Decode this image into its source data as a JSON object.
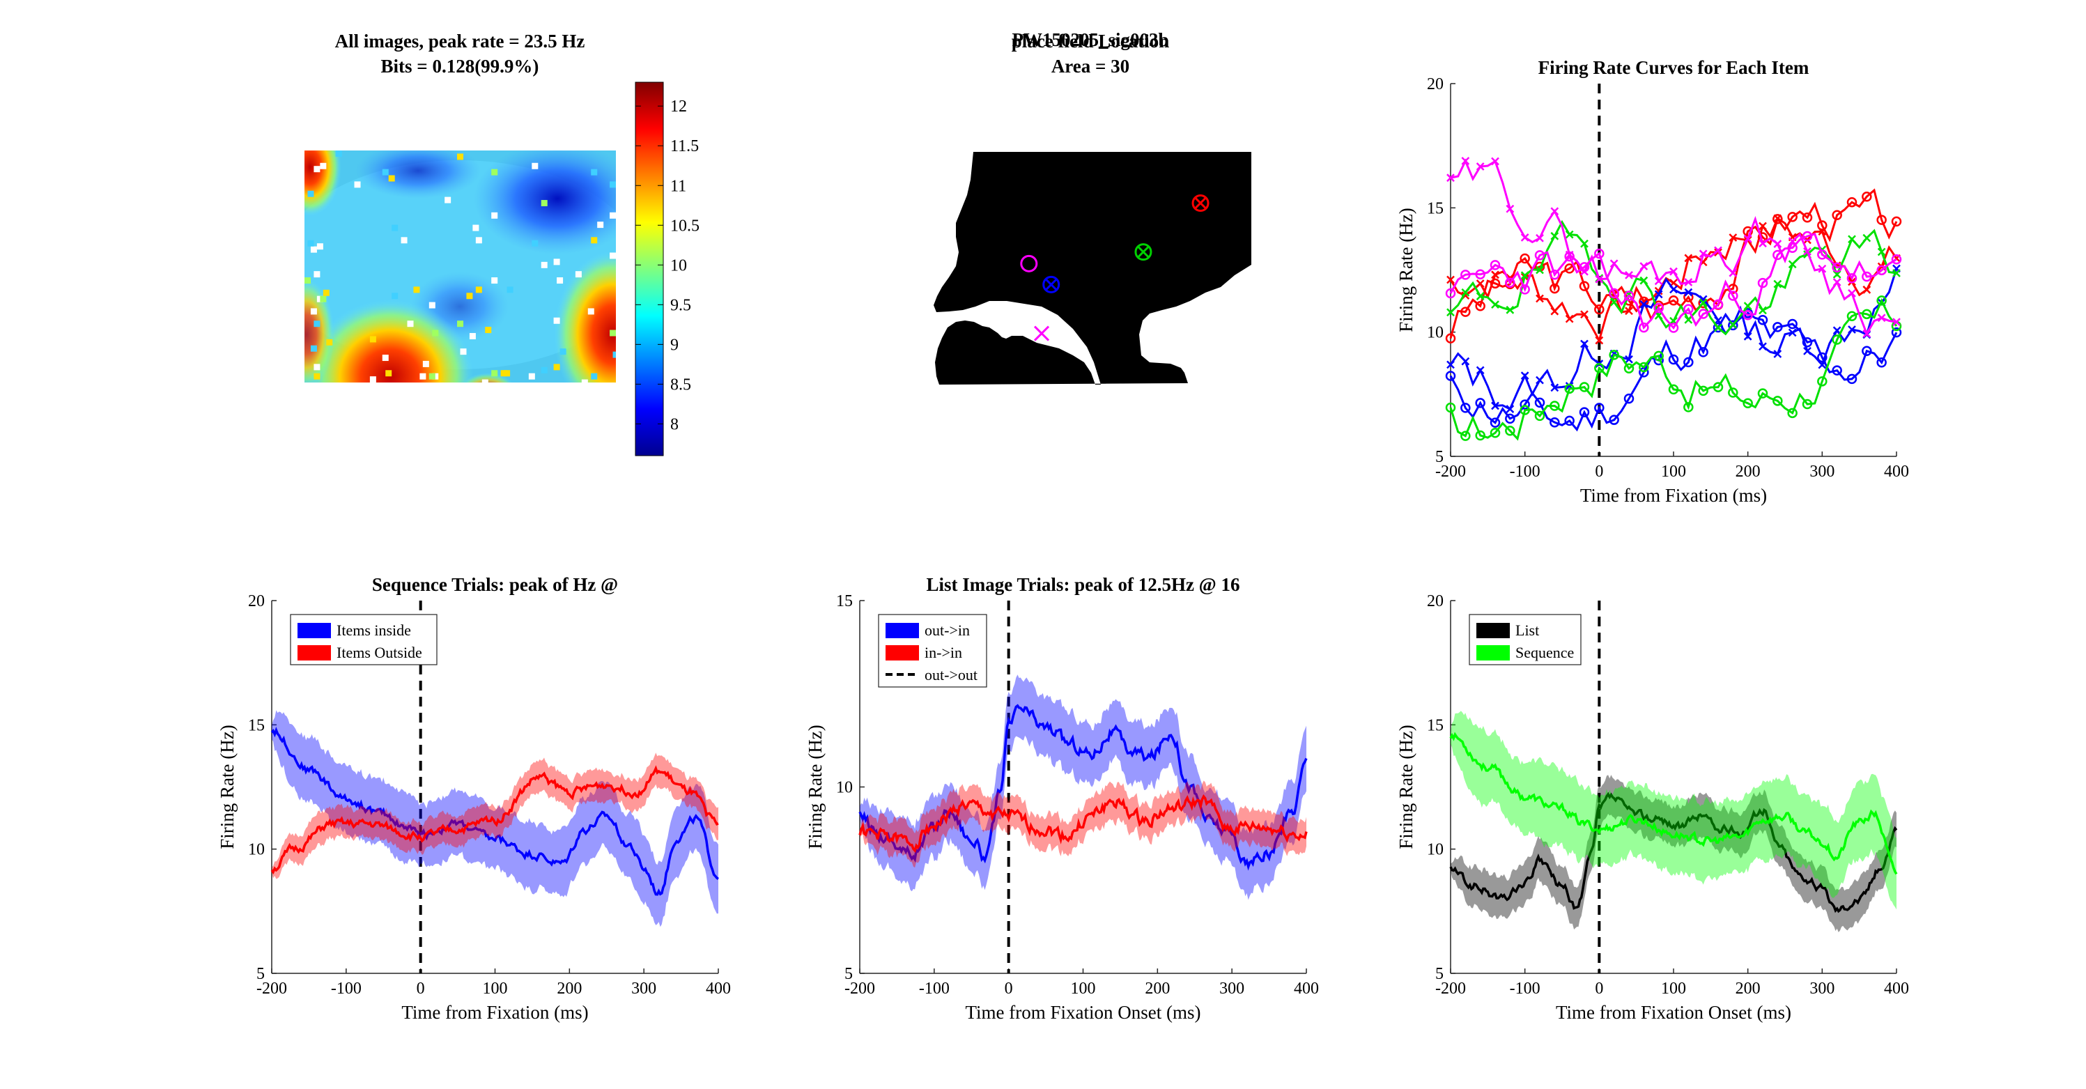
{
  "chart_data": [
    {
      "id": "heatmap",
      "type": "heatmap",
      "title": [
        "All images, peak rate = 23.5 Hz",
        "Bits = 0.128(99.9%)"
      ],
      "colorbar": {
        "min": 7.6,
        "max": 12.3,
        "ticks": [
          8,
          8.5,
          9,
          9.5,
          10,
          10.5,
          11,
          11.5,
          12
        ]
      },
      "colormap": "jet"
    },
    {
      "id": "placefield",
      "type": "scatter",
      "title": [
        "place field Location",
        "Area = 30"
      ],
      "overlapping_title": "PW150205_sig003b",
      "markers": [
        {
          "color": "#ff00ff",
          "shape": "circle",
          "x": 0.3,
          "y": 0.48
        },
        {
          "color": "#0000ff",
          "shape": "circle-x",
          "x": 0.37,
          "y": 0.57
        },
        {
          "color": "#00d000",
          "shape": "circle-x",
          "x": 0.66,
          "y": 0.43
        },
        {
          "color": "#ff0000",
          "shape": "circle-x",
          "x": 0.84,
          "y": 0.22
        },
        {
          "color": "#ff00ff",
          "shape": "x",
          "x": 0.34,
          "y": 0.78
        }
      ]
    },
    {
      "id": "items",
      "type": "line",
      "title": "Firing Rate Curves for Each Item",
      "xlabel": "Time from Fixation (ms)",
      "ylabel": "Firing Rate (Hz)",
      "xlim": [
        -200,
        400
      ],
      "ylim": [
        5,
        20
      ],
      "xticks": [
        -200,
        -100,
        0,
        100,
        200,
        300,
        400
      ],
      "yticks": [
        5,
        10,
        15,
        20
      ],
      "vline": 0,
      "series": [
        {
          "color": "#ff0000",
          "marker": "o",
          "start": 10.2,
          "end": 14.5,
          "seed": 3
        },
        {
          "color": "#ff0000",
          "marker": "x",
          "start": 11.0,
          "end": 14.0,
          "seed": 7
        },
        {
          "color": "#0000ff",
          "marker": "o",
          "start": 6.5,
          "end": 10.3,
          "seed": 11
        },
        {
          "color": "#0000ff",
          "marker": "x",
          "start": 8.4,
          "end": 11.5,
          "seed": 13
        },
        {
          "color": "#00e000",
          "marker": "o",
          "start": 7.2,
          "end": 9.0,
          "seed": 17
        },
        {
          "color": "#00e000",
          "marker": "x",
          "start": 11.8,
          "end": 11.8,
          "seed": 19
        },
        {
          "color": "#ff00ff",
          "marker": "o",
          "start": 11.2,
          "end": 12.0,
          "seed": 23
        },
        {
          "color": "#ff00ff",
          "marker": "x",
          "start": 14.7,
          "end": 11.8,
          "seed": 29
        }
      ]
    },
    {
      "id": "sequence",
      "type": "line",
      "title": "Sequence Trials: peak of Hz @",
      "xlabel": "Time from Fixation (ms)",
      "ylabel": "Firing Rate (Hz)",
      "xlim": [
        -200,
        400
      ],
      "ylim": [
        5,
        20
      ],
      "xticks": [
        -200,
        -100,
        0,
        100,
        200,
        300,
        400
      ],
      "yticks": [
        5,
        10,
        15,
        20
      ],
      "vline": 0,
      "legend": [
        {
          "label": "Items inside",
          "color": "#0000ff",
          "style": "patch"
        },
        {
          "label": "Items Outside",
          "color": "#ff0000",
          "style": "patch"
        }
      ],
      "series": [
        {
          "name": "Items inside",
          "color": "#0000ff",
          "band": 1.3,
          "knots": [
            [
              -200,
              14.8
            ],
            [
              -150,
              13.2
            ],
            [
              -100,
              12.0
            ],
            [
              -50,
              11.4
            ],
            [
              -20,
              10.9
            ],
            [
              0,
              10.6
            ],
            [
              50,
              11.0
            ],
            [
              100,
              10.4
            ],
            [
              150,
              9.8
            ],
            [
              190,
              9.4
            ],
            [
              220,
              10.8
            ],
            [
              250,
              11.3
            ],
            [
              280,
              10.2
            ],
            [
              300,
              9.2
            ],
            [
              320,
              8.2
            ],
            [
              345,
              10.5
            ],
            [
              370,
              11.2
            ],
            [
              400,
              8.9
            ]
          ]
        },
        {
          "name": "Items Outside",
          "color": "#ff0000",
          "band": 0.6,
          "knots": [
            [
              -200,
              9.2
            ],
            [
              -170,
              10.0
            ],
            [
              -120,
              11.0
            ],
            [
              -70,
              11.0
            ],
            [
              0,
              10.5
            ],
            [
              50,
              10.8
            ],
            [
              100,
              11.2
            ],
            [
              160,
              12.9
            ],
            [
              200,
              12.3
            ],
            [
              250,
              12.6
            ],
            [
              290,
              12.3
            ],
            [
              320,
              13.1
            ],
            [
              360,
              12.3
            ],
            [
              400,
              11.0
            ]
          ]
        }
      ]
    },
    {
      "id": "list",
      "type": "line",
      "title": "List Image Trials: peak of 12.5Hz @ 16",
      "xlabel": "Time from Fixation Onset (ms)",
      "ylabel": "Firing Rate (Hz)",
      "xlim": [
        -200,
        400
      ],
      "ylim": [
        5,
        15
      ],
      "xticks": [
        -200,
        -100,
        0,
        100,
        200,
        300,
        400
      ],
      "yticks": [
        5,
        10,
        15
      ],
      "vline": 0,
      "legend": [
        {
          "label": "out->in",
          "color": "#0000ff",
          "style": "patch"
        },
        {
          "label": "in->in",
          "color": "#ff0000",
          "style": "patch"
        },
        {
          "label": "out->out",
          "color": "#000000",
          "style": "dash"
        }
      ],
      "series": [
        {
          "name": "out->in",
          "color": "#0000ff",
          "band": 0.8,
          "knots": [
            [
              -200,
              9.2
            ],
            [
              -170,
              8.7
            ],
            [
              -130,
              8.2
            ],
            [
              -100,
              8.9
            ],
            [
              -80,
              9.4
            ],
            [
              -50,
              8.6
            ],
            [
              -30,
              8.1
            ],
            [
              -10,
              10.0
            ],
            [
              0,
              11.6
            ],
            [
              15,
              12.1
            ],
            [
              50,
              11.6
            ],
            [
              80,
              11.2
            ],
            [
              110,
              10.9
            ],
            [
              140,
              11.5
            ],
            [
              160,
              11.0
            ],
            [
              190,
              10.8
            ],
            [
              220,
              11.5
            ],
            [
              240,
              10.1
            ],
            [
              270,
              9.1
            ],
            [
              300,
              8.7
            ],
            [
              320,
              7.9
            ],
            [
              350,
              8.2
            ],
            [
              380,
              9.3
            ],
            [
              400,
              10.7
            ]
          ]
        },
        {
          "name": "in->in",
          "color": "#ff0000",
          "band": 0.45,
          "knots": [
            [
              -200,
              8.8
            ],
            [
              -170,
              8.7
            ],
            [
              -130,
              8.5
            ],
            [
              -100,
              9.0
            ],
            [
              -60,
              9.5
            ],
            [
              -20,
              9.3
            ],
            [
              0,
              9.2
            ],
            [
              40,
              8.9
            ],
            [
              80,
              8.7
            ],
            [
              110,
              9.2
            ],
            [
              140,
              9.6
            ],
            [
              180,
              9.1
            ],
            [
              220,
              9.4
            ],
            [
              260,
              9.6
            ],
            [
              300,
              8.9
            ],
            [
              340,
              8.9
            ],
            [
              400,
              8.7
            ]
          ]
        }
      ]
    },
    {
      "id": "listseq",
      "type": "line",
      "xlabel": "Time from Fixation Onset (ms)",
      "ylabel": "Firing Rate (Hz)",
      "xlim": [
        -200,
        400
      ],
      "ylim": [
        5,
        20
      ],
      "xticks": [
        -200,
        -100,
        0,
        100,
        200,
        300,
        400
      ],
      "yticks": [
        5,
        10,
        15,
        20
      ],
      "vline": 0,
      "legend": [
        {
          "label": "List",
          "color": "#000000",
          "style": "patch"
        },
        {
          "label": "Sequence",
          "color": "#00ff00",
          "style": "patch"
        }
      ],
      "series": [
        {
          "name": "List",
          "color": "#000000",
          "band": 0.8,
          "knots": [
            [
              -200,
              9.2
            ],
            [
              -170,
              8.5
            ],
            [
              -130,
              8.0
            ],
            [
              -100,
              8.6
            ],
            [
              -80,
              9.5
            ],
            [
              -50,
              8.5
            ],
            [
              -30,
              7.6
            ],
            [
              -10,
              9.8
            ],
            [
              0,
              11.6
            ],
            [
              15,
              12.1
            ],
            [
              50,
              11.4
            ],
            [
              80,
              11.2
            ],
            [
              110,
              10.9
            ],
            [
              140,
              11.4
            ],
            [
              160,
              10.8
            ],
            [
              190,
              10.7
            ],
            [
              220,
              11.6
            ],
            [
              240,
              10.2
            ],
            [
              270,
              9.0
            ],
            [
              300,
              8.4
            ],
            [
              320,
              7.6
            ],
            [
              350,
              8.0
            ],
            [
              380,
              9.3
            ],
            [
              400,
              10.9
            ]
          ]
        },
        {
          "name": "Sequence",
          "color": "#00ff00",
          "band": 1.5,
          "knots": [
            [
              -200,
              14.6
            ],
            [
              -150,
              13.3
            ],
            [
              -100,
              12.1
            ],
            [
              -50,
              11.6
            ],
            [
              -20,
              11.0
            ],
            [
              0,
              10.8
            ],
            [
              50,
              11.2
            ],
            [
              100,
              10.6
            ],
            [
              150,
              10.3
            ],
            [
              190,
              10.5
            ],
            [
              220,
              11.2
            ],
            [
              250,
              11.3
            ],
            [
              280,
              10.6
            ],
            [
              300,
              10.3
            ],
            [
              320,
              9.7
            ],
            [
              345,
              11.0
            ],
            [
              370,
              11.4
            ],
            [
              400,
              9.0
            ]
          ]
        }
      ]
    }
  ]
}
